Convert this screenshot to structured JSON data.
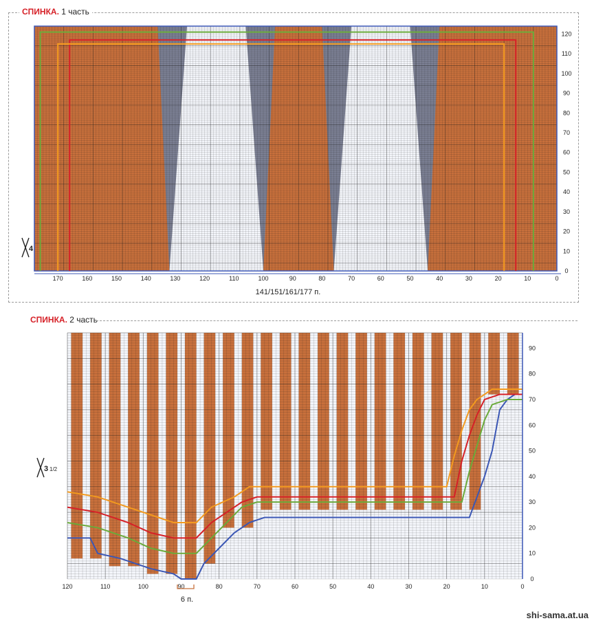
{
  "part1": {
    "title_bold": "СПИНКА.",
    "title_rest": " 1 часть",
    "stitch_count": "141/151/161/177 п.",
    "needle_size": "4",
    "x_ticks": [
      "170",
      "160",
      "150",
      "140",
      "130",
      "120",
      "110",
      "100",
      "90",
      "80",
      "70",
      "60",
      "50",
      "40",
      "30",
      "20",
      "10",
      "0"
    ],
    "y_ticks": [
      "0",
      "10",
      "20",
      "30",
      "40",
      "50",
      "60",
      "70",
      "80",
      "90",
      "100",
      "110",
      "120"
    ]
  },
  "part2": {
    "title_bold": "СПИНКА.",
    "title_rest": " 2 часть",
    "width_label": "6 п.",
    "needle_size": "3",
    "needle_size_frac": "1/2",
    "x_ticks": [
      "120",
      "110",
      "100",
      "90",
      "80",
      "70",
      "60",
      "50",
      "40",
      "30",
      "20",
      "10",
      "0"
    ],
    "y_ticks": [
      "0",
      "10",
      "20",
      "30",
      "40",
      "50",
      "60",
      "70",
      "80",
      "90"
    ]
  },
  "footer": "shi-sama.at.ua",
  "colors": {
    "orange": "#c8703c",
    "grey": "#7b7f93",
    "grid": "#1a1a1a",
    "red": "#d62027",
    "green": "#6aaa3a",
    "size_orange": "#f39a1e",
    "blue": "#3b57b5"
  }
}
